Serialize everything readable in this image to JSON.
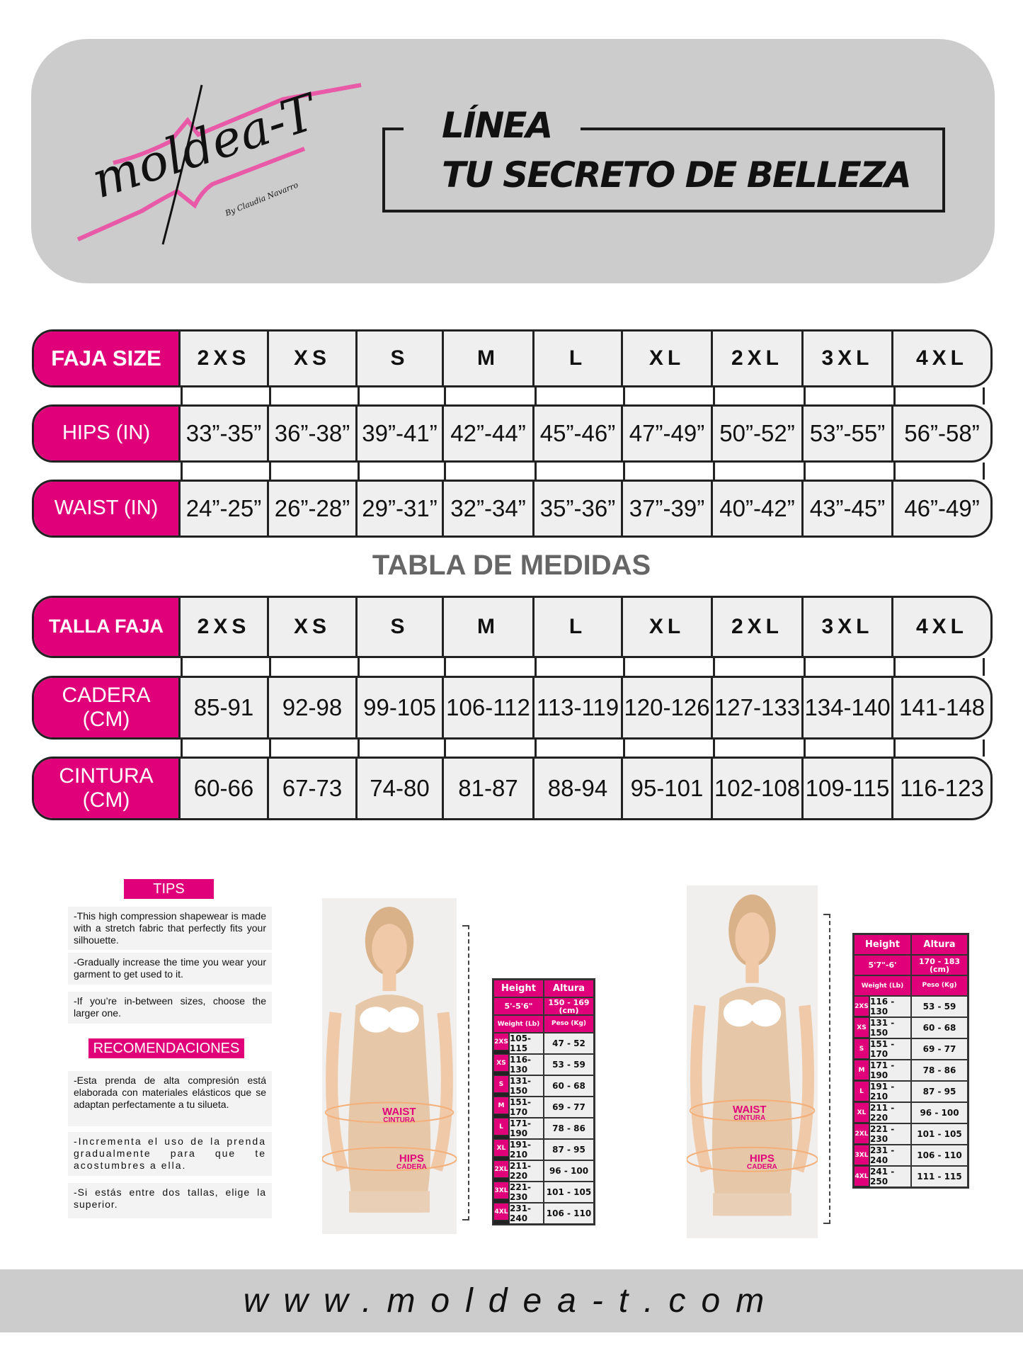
{
  "brand": {
    "logo_text": "moldea-T",
    "logo_byline": "By Claudia Navarro",
    "accent": "#e0007a",
    "header_bg": "#cccccc"
  },
  "tagline": {
    "line1": "LÍNEA",
    "line2": "TU SECRETO DE BELLEZA"
  },
  "us_table": {
    "rows": [
      {
        "label": "FAJA SIZE",
        "values": [
          "2XS",
          "XS",
          "S",
          "M",
          "L",
          "XL",
          "2XL",
          "3XL",
          "4XL"
        ]
      },
      {
        "label": "HIPS (IN)",
        "values": [
          "33”-35”",
          "36”-38”",
          "39”-41”",
          "42”-44”",
          "45”-46”",
          "47”-49”",
          "50”-52”",
          "53”-55”",
          "56”-58”"
        ]
      },
      {
        "label": "WAIST (IN)",
        "values": [
          "24”-25”",
          "26”-28”",
          "29”-31”",
          "32”-34”",
          "35”-36”",
          "37”-39”",
          "40”-42”",
          "43”-45”",
          "46”-49”"
        ]
      }
    ]
  },
  "tabla_title": "TABLA DE MEDIDAS",
  "cm_table": {
    "rows": [
      {
        "label": "TALLA FAJA",
        "values": [
          "2XS",
          "XS",
          "S",
          "M",
          "L",
          "XL",
          "2XL",
          "3XL",
          "4XL"
        ]
      },
      {
        "label": "CADERA (CM)",
        "values": [
          "85-91",
          "92-98",
          "99-105",
          "106-112",
          "113-119",
          "120-126",
          "127-133",
          "134-140",
          "141-148"
        ]
      },
      {
        "label": "CINTURA (CM)",
        "values": [
          "60-66",
          "67-73",
          "74-80",
          "81-87",
          "88-94",
          "95-101",
          "102-108",
          "109-115",
          "116-123"
        ]
      }
    ]
  },
  "tips": {
    "title": "TIPS",
    "items": [
      "-This high compression shapewear is made with a stretch fabric that perfectly fits your silhouette.",
      "-Gradually increase the time you wear your garment to get used to it.",
      "-If you’re in-between sizes, choose the larger one."
    ]
  },
  "recomendaciones": {
    "title": "RECOMENDACIONES",
    "items": [
      "-Esta prenda de alta compresión está elaborada con materiales elásticos que se adaptan perfectamente a tu silueta.",
      "-Incrementa el uso de la prenda gradualmente para que te acostumbres a ella.",
      "-Si estás entre dos tallas, elige la superior."
    ]
  },
  "photo_labels": {
    "waist": "WAIST",
    "cintura": "CINTURA",
    "hips": "HIPS",
    "cadera": "CADERA"
  },
  "weight_tables": [
    {
      "height_label": "Height",
      "altura_label": "Altura",
      "height": "5'-5'6\"",
      "altura": "150 - 169 (cm)",
      "weight_label": "Weight (Lb)",
      "peso_label": "Peso (Kg)",
      "rows": [
        [
          "2XS",
          "105-115",
          "47 - 52"
        ],
        [
          "XS",
          "116-130",
          "53 - 59"
        ],
        [
          "S",
          "131-150",
          "60 - 68"
        ],
        [
          "M",
          "151-170",
          "69 - 77"
        ],
        [
          "L",
          "171-190",
          "78 - 86"
        ],
        [
          "XL",
          "191-210",
          "87 - 95"
        ],
        [
          "2XL",
          "211-220",
          "96 - 100"
        ],
        [
          "3XL",
          "221-230",
          "101 - 105"
        ],
        [
          "4XL",
          "231-240",
          "106 - 110"
        ]
      ]
    },
    {
      "height_label": "Height",
      "altura_label": "Altura",
      "height": "5'7\"-6'",
      "altura": "170 - 183 (cm)",
      "weight_label": "Weight (Lb)",
      "peso_label": "Peso (Kg)",
      "rows": [
        [
          "2XS",
          "116 - 130",
          "53 - 59"
        ],
        [
          "XS",
          "131 - 150",
          "60 - 68"
        ],
        [
          "S",
          "151 - 170",
          "69 - 77"
        ],
        [
          "M",
          "171 - 190",
          "78 - 86"
        ],
        [
          "L",
          "191 - 210",
          "87 - 95"
        ],
        [
          "XL",
          "211 - 220",
          "96 - 100"
        ],
        [
          "2XL",
          "221 - 230",
          "101 - 105"
        ],
        [
          "3XL",
          "231 - 240",
          "106 - 110"
        ],
        [
          "4XL",
          "241 - 250",
          "111 - 115"
        ]
      ]
    }
  ],
  "footer": {
    "url": "www.moldea-t.com"
  }
}
